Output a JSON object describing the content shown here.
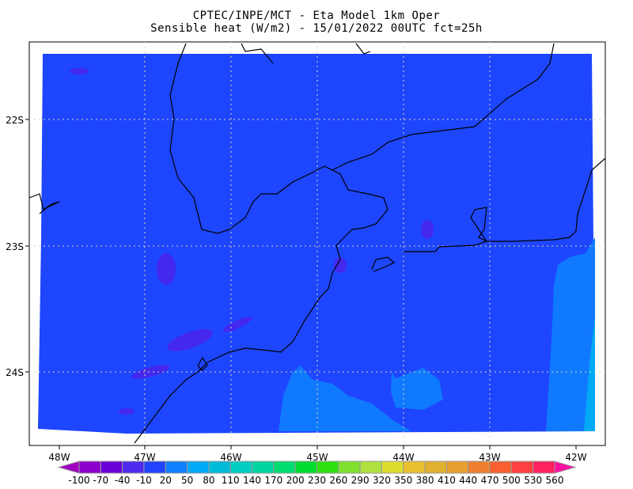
{
  "title": {
    "line1": "CPTEC/INPE/MCT -  Eta Model 1km Oper",
    "line2": "Sensible heat (W/m2) - 15/01/2022 00UTC fct=25h"
  },
  "map": {
    "lon_labels": [
      "48W",
      "47W",
      "46W",
      "45W",
      "44W",
      "43W",
      "42W"
    ],
    "lat_labels": [
      "22S",
      "23S",
      "24S"
    ],
    "background_color": "#1E46FF",
    "ocean_light_color": "#0F7AFF",
    "land_patch_color": "#4428EE",
    "gridlines": "dotted"
  },
  "colorbar": {
    "labels": [
      "-100",
      "-70",
      "-40",
      "-10",
      "20",
      "50",
      "80",
      "110",
      "140",
      "170",
      "200",
      "230",
      "260",
      "290",
      "320",
      "350",
      "380",
      "410",
      "440",
      "470",
      "500",
      "530",
      "560"
    ],
    "colors": [
      "#8B00CC",
      "#6A00D8",
      "#4E2BEE",
      "#2244FF",
      "#1080FF",
      "#00AAF5",
      "#00BBD8",
      "#00CCC0",
      "#00D4A0",
      "#00DD70",
      "#00DD30",
      "#30E010",
      "#80E030",
      "#B0E040",
      "#DDDD30",
      "#E8C030",
      "#E0B030",
      "#E8A030",
      "#F08030",
      "#F86030",
      "#FF4040",
      "#FF2060"
    ],
    "under_color": "#A000C0",
    "over_color": "#FF10A0"
  }
}
